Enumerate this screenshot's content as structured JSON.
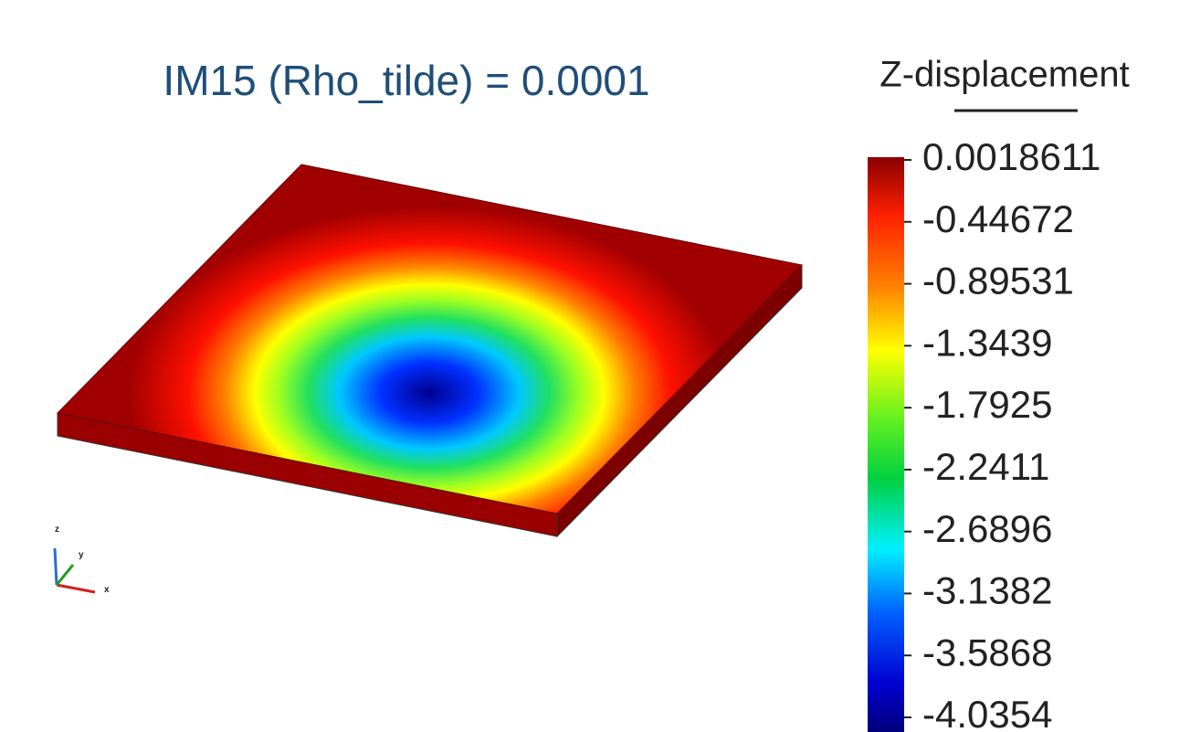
{
  "title": "IM15 (Rho_tilde) = 0.0001",
  "colorbar": {
    "title": "Z-displacement",
    "ticks": [
      0.0018611,
      -0.44672,
      -0.89531,
      -1.3439,
      -1.7925,
      -2.2411,
      -2.6896,
      -3.1382,
      -3.5868,
      -4.0354
    ]
  },
  "axes_triad": {
    "z": "z",
    "y": "y",
    "x": "x"
  }
}
